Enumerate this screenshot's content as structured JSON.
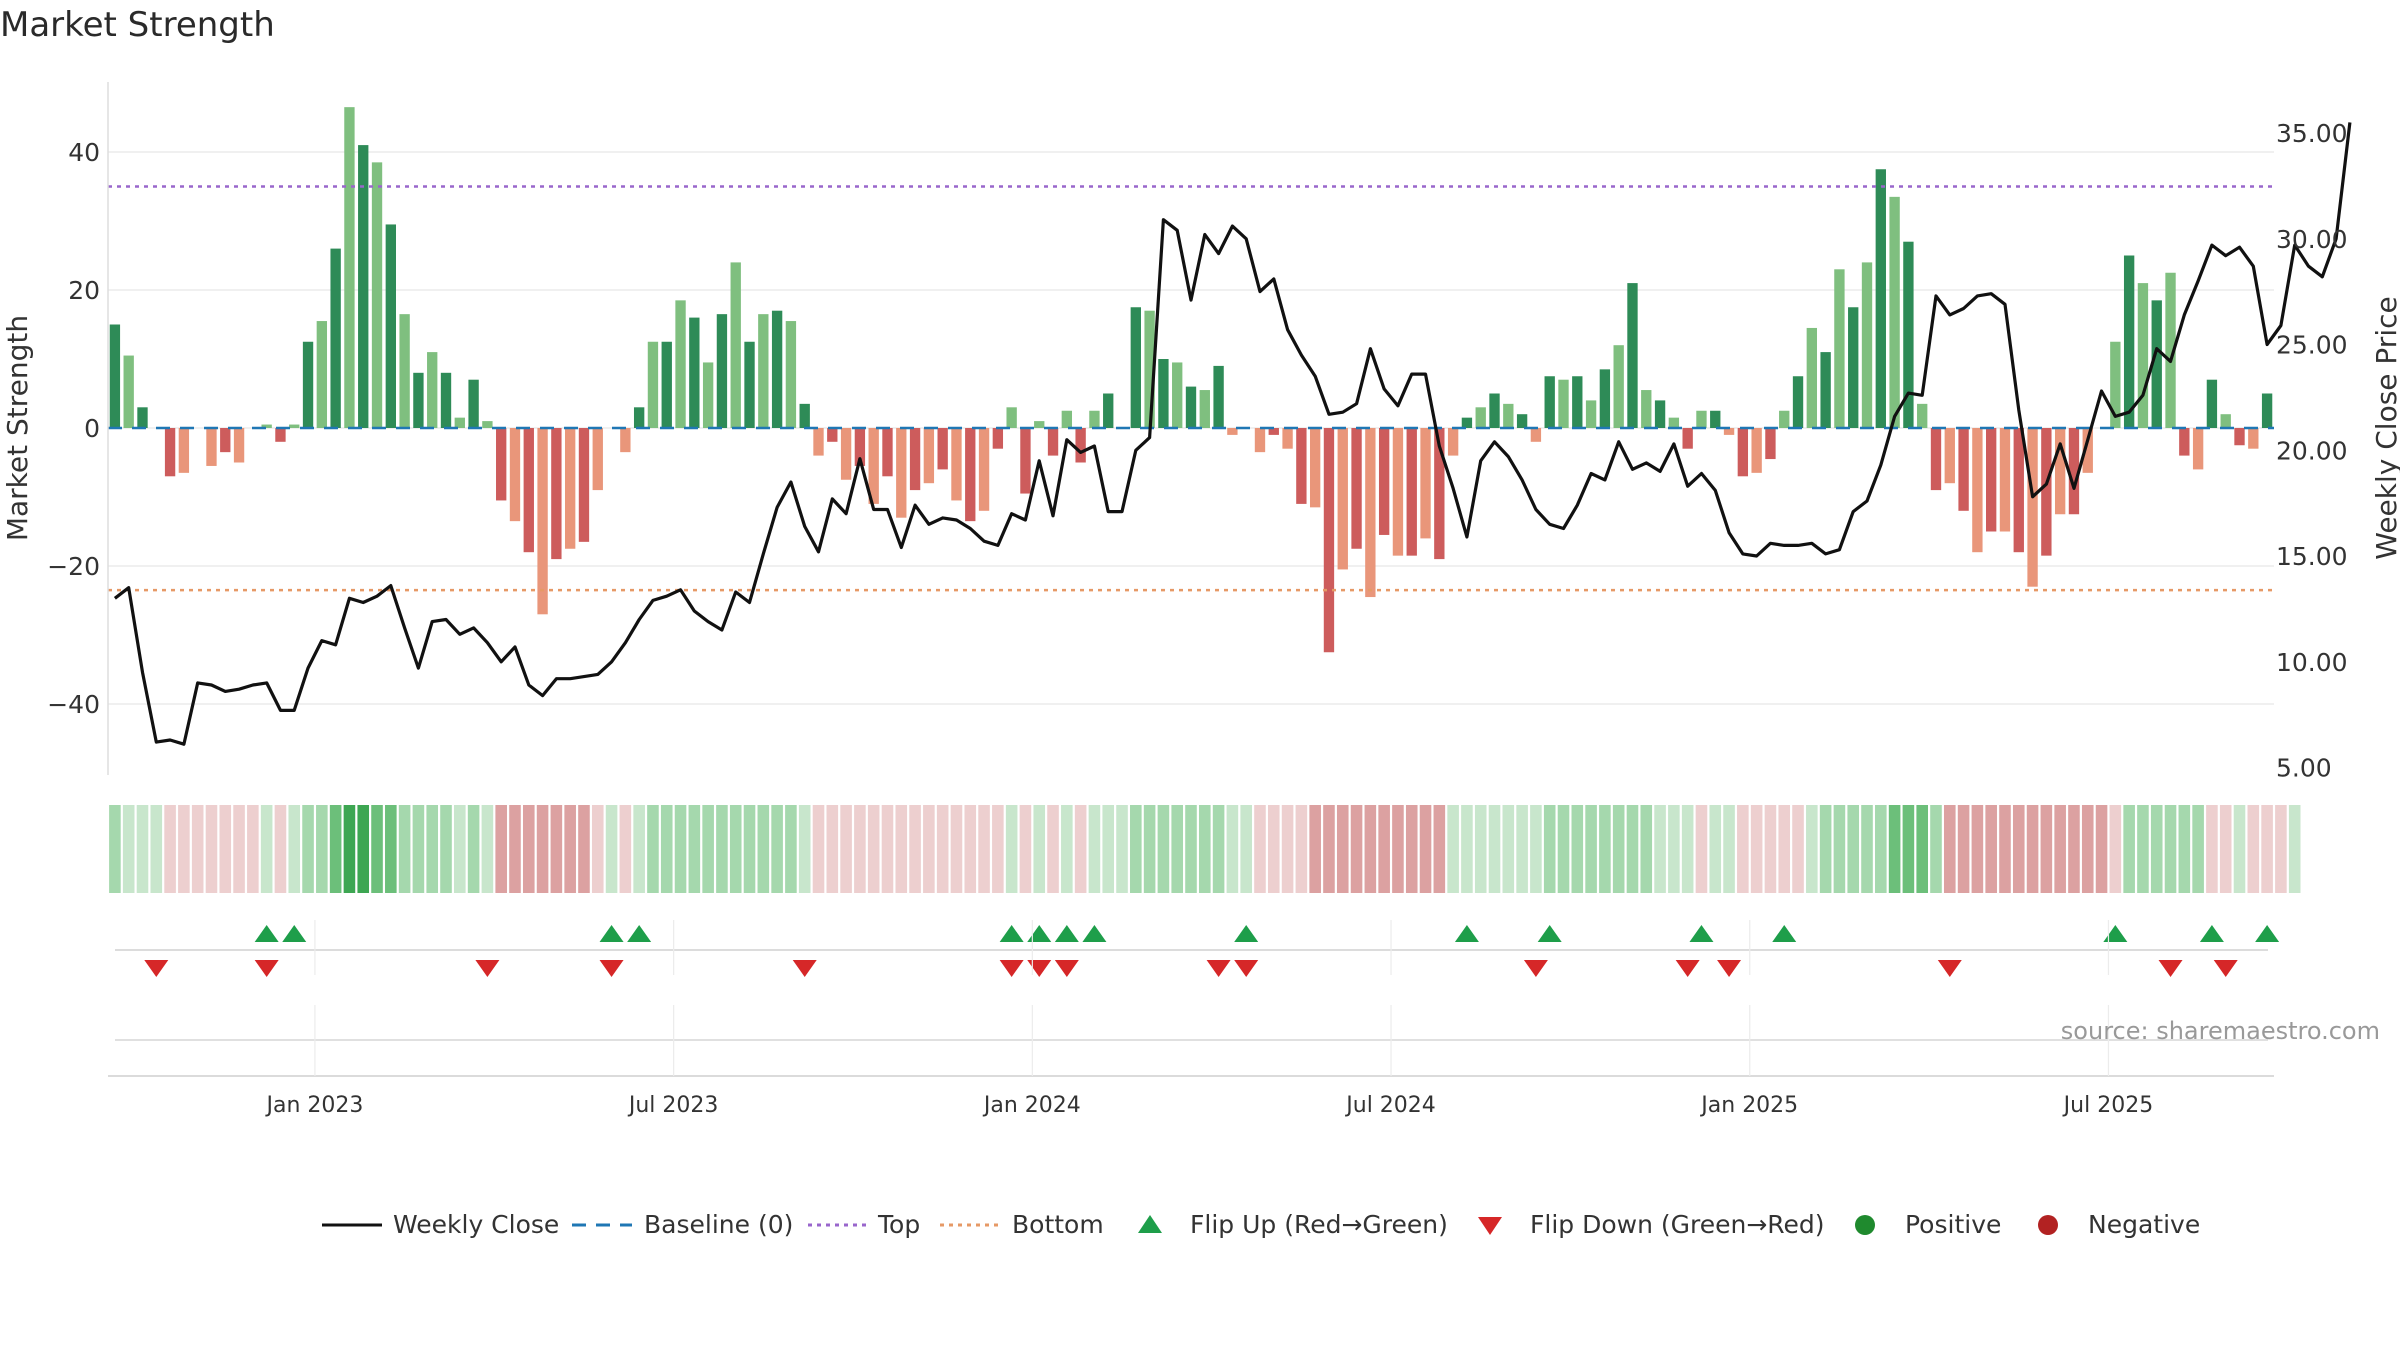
{
  "chart_data": {
    "type": "bar",
    "title": "Market Strength",
    "ylabel_left": "Market Strength",
    "ylabel_right": "Weekly Close Price",
    "ylim_left": [
      -50,
      50
    ],
    "ylim_right": [
      4.0,
      37.0
    ],
    "yticks_left": [
      40,
      20,
      0,
      -20,
      -40
    ],
    "ytick_labels_left": [
      "40",
      "20",
      "0",
      "−20",
      "−40"
    ],
    "yticks_right": [
      35,
      30,
      25,
      20,
      15,
      10,
      5
    ],
    "ytick_labels_right": [
      "35.00",
      "30.00",
      "25.00",
      "20.00",
      "15.00",
      "10.00",
      "5.00"
    ],
    "x_ticks": [
      "Jan 2023",
      "Jul 2023",
      "Jan 2024",
      "Jul 2024",
      "Jan 2025",
      "Jul 2025"
    ],
    "x_tick_index": [
      14.5,
      40.5,
      66.5,
      92.5,
      118.5,
      144.5
    ],
    "top_level": 35,
    "bottom_level": -23.5,
    "strength": [
      15,
      10.5,
      3,
      0,
      -7,
      -6.5,
      0,
      -5.5,
      -3.5,
      -5,
      0,
      0.5,
      -2,
      0.5,
      12.5,
      15.5,
      26,
      46.5,
      41,
      38.5,
      29.5,
      16.5,
      8,
      11,
      8,
      1.5,
      7,
      1,
      -10.5,
      -13.5,
      -18,
      -27,
      -19,
      -17.5,
      -16.5,
      -9,
      0,
      -3.5,
      3,
      12.5,
      12.5,
      18.5,
      16,
      9.5,
      16.5,
      24,
      12.5,
      16.5,
      17,
      15.5,
      3.5,
      -4,
      -2,
      -7.5,
      -5.5,
      -11,
      -7,
      -13,
      -9,
      -8,
      -6,
      -10.5,
      -13.5,
      -12,
      -3,
      3,
      -9.5,
      1,
      -4,
      2.5,
      -5,
      2.5,
      5,
      0,
      17.5,
      17,
      10,
      9.5,
      6,
      5.5,
      9,
      -1,
      0,
      -3.5,
      -1,
      -3,
      -11,
      -11.5,
      -32.5,
      -20.5,
      -17.5,
      -24.5,
      -15.5,
      -18.5,
      -18.5,
      -16,
      -19,
      -4,
      1.5,
      3,
      5,
      3.5,
      2,
      -2,
      7.5,
      7,
      7.5,
      4,
      8.5,
      12,
      21,
      5.5,
      4,
      1.5,
      -3,
      2.5,
      2.5,
      -1,
      -7,
      -6.5,
      -4.5,
      2.5,
      7.5,
      14.5,
      11,
      23,
      17.5,
      24,
      37.5,
      33.5,
      27,
      3.5,
      -9,
      -8,
      -12,
      -18,
      -15,
      -15,
      -18,
      -23,
      -18.5,
      -12.5,
      -12.5,
      -6.5,
      0,
      12.5,
      25,
      21,
      18.5,
      22.5,
      -4,
      -6,
      7,
      2,
      -2.5,
      -3,
      5
    ],
    "weekly_close": [
      13,
      13.5,
      9.5,
      6.2,
      6.3,
      6.1,
      9,
      8.9,
      8.6,
      8.7,
      8.9,
      9,
      7.7,
      7.7,
      9.7,
      11,
      10.8,
      13,
      12.8,
      13.1,
      13.6,
      11.6,
      9.7,
      11.9,
      12,
      11.3,
      11.6,
      10.9,
      10,
      10.7,
      8.9,
      8.4,
      9.2,
      9.2,
      9.3,
      9.4,
      10,
      10.9,
      12,
      12.9,
      13.1,
      13.4,
      12.4,
      11.9,
      11.5,
      13.3,
      12.8,
      15.1,
      17.3,
      18.5,
      16.4,
      15.2,
      17.7,
      17,
      19.6,
      17.2,
      17.2,
      15.4,
      17.4,
      16.5,
      16.8,
      16.7,
      16.3,
      15.7,
      15.5,
      17,
      16.7,
      19.5,
      16.9,
      20.5,
      19.9,
      20.2,
      17.1,
      17.1,
      20,
      20.6,
      30.9,
      30.4,
      27.1,
      30.2,
      29.3,
      30.6,
      30,
      27.5,
      28.1,
      25.7,
      24.5,
      23.5,
      21.7,
      21.8,
      22.2,
      24.8,
      22.9,
      22.1,
      23.6,
      23.6,
      20.2,
      18.2,
      15.9,
      19.5,
      20.4,
      19.7,
      18.6,
      17.2,
      16.5,
      16.3,
      17.4,
      18.9,
      18.6,
      20.4,
      19.1,
      19.4,
      19,
      20.3,
      18.3,
      18.9,
      18.1,
      16.1,
      15.1,
      15,
      15.6,
      15.5,
      15.5,
      15.6,
      15.1,
      15.3,
      17.1,
      17.6,
      19.3,
      21.6,
      22.7,
      22.6,
      27.3,
      26.4,
      26.7,
      27.3,
      27.4,
      26.9,
      21.9,
      17.8,
      18.4,
      20.3,
      18.2,
      20.5,
      22.8,
      21.6,
      21.8,
      22.6,
      24.8,
      24.2,
      26.4,
      28,
      29.7,
      29.2,
      29.6,
      28.7,
      25,
      25.9,
      29.7,
      28.7,
      28.2,
      30,
      35.5
    ],
    "heat_band": [
      1,
      0,
      0,
      0,
      -1,
      -1,
      -1,
      -1,
      -1,
      -1,
      -1,
      0,
      -1,
      0,
      1,
      1,
      2,
      3,
      3,
      2,
      2,
      1,
      1,
      1,
      1,
      0,
      1,
      0,
      -2,
      -2,
      -2,
      -2,
      -2,
      -2,
      -2,
      -1,
      0,
      -1,
      0,
      1,
      1,
      1,
      1,
      1,
      1,
      1,
      1,
      1,
      1,
      1,
      0,
      -1,
      -1,
      -1,
      -1,
      -1,
      -1,
      -1,
      -1,
      -1,
      -1,
      -1,
      -1,
      -1,
      -1,
      0,
      -1,
      0,
      -1,
      0,
      -1,
      0,
      0,
      0,
      1,
      1,
      1,
      1,
      1,
      1,
      1,
      0,
      0,
      -1,
      -1,
      -1,
      -1,
      -2,
      -2,
      -2,
      -2,
      -2,
      -2,
      -2,
      -2,
      -2,
      -2,
      0,
      0,
      0,
      0,
      0,
      0,
      0,
      1,
      1,
      1,
      1,
      1,
      1,
      1,
      1,
      0,
      0,
      0,
      -1,
      0,
      0,
      -1,
      -1,
      -1,
      -1,
      -1,
      0,
      1,
      1,
      1,
      1,
      1,
      2,
      2,
      2,
      1,
      -2,
      -2,
      -2,
      -2,
      -2,
      -2,
      -2,
      -2,
      -2,
      -2,
      -2,
      -2,
      -1,
      1,
      1,
      1,
      1,
      1,
      1,
      -1,
      -1,
      0,
      -1,
      -1,
      -1,
      0
    ],
    "flip_up": [
      11,
      13,
      36,
      38,
      65,
      67,
      69,
      71,
      82,
      98,
      104,
      115,
      121,
      145,
      152,
      156
    ],
    "flip_down": [
      3,
      11,
      27,
      36,
      50,
      65,
      67,
      69,
      80,
      82,
      103,
      114,
      117,
      133,
      149,
      153
    ],
    "legend": [
      "Weekly Close",
      "Baseline (0)",
      "Top",
      "Bottom",
      "Flip Up (Red→Green)",
      "Flip Down (Green→Red)",
      "Positive",
      "Negative"
    ],
    "source": "source: sharemaestro.com",
    "colors": {
      "pos_strong": "#2e8b57",
      "pos_light": "#7fbf7f",
      "neg_strong": "#cd5c5c",
      "neg_light": "#e9967a",
      "top_line": "#9966cc",
      "bottom_line": "#e69966",
      "baseline": "#1f77b4",
      "price": "#111111",
      "flip_up": "#1e9e4a",
      "flip_down": "#d62728",
      "legend_positive": "#1f8a2e",
      "legend_negative": "#b22222"
    }
  }
}
